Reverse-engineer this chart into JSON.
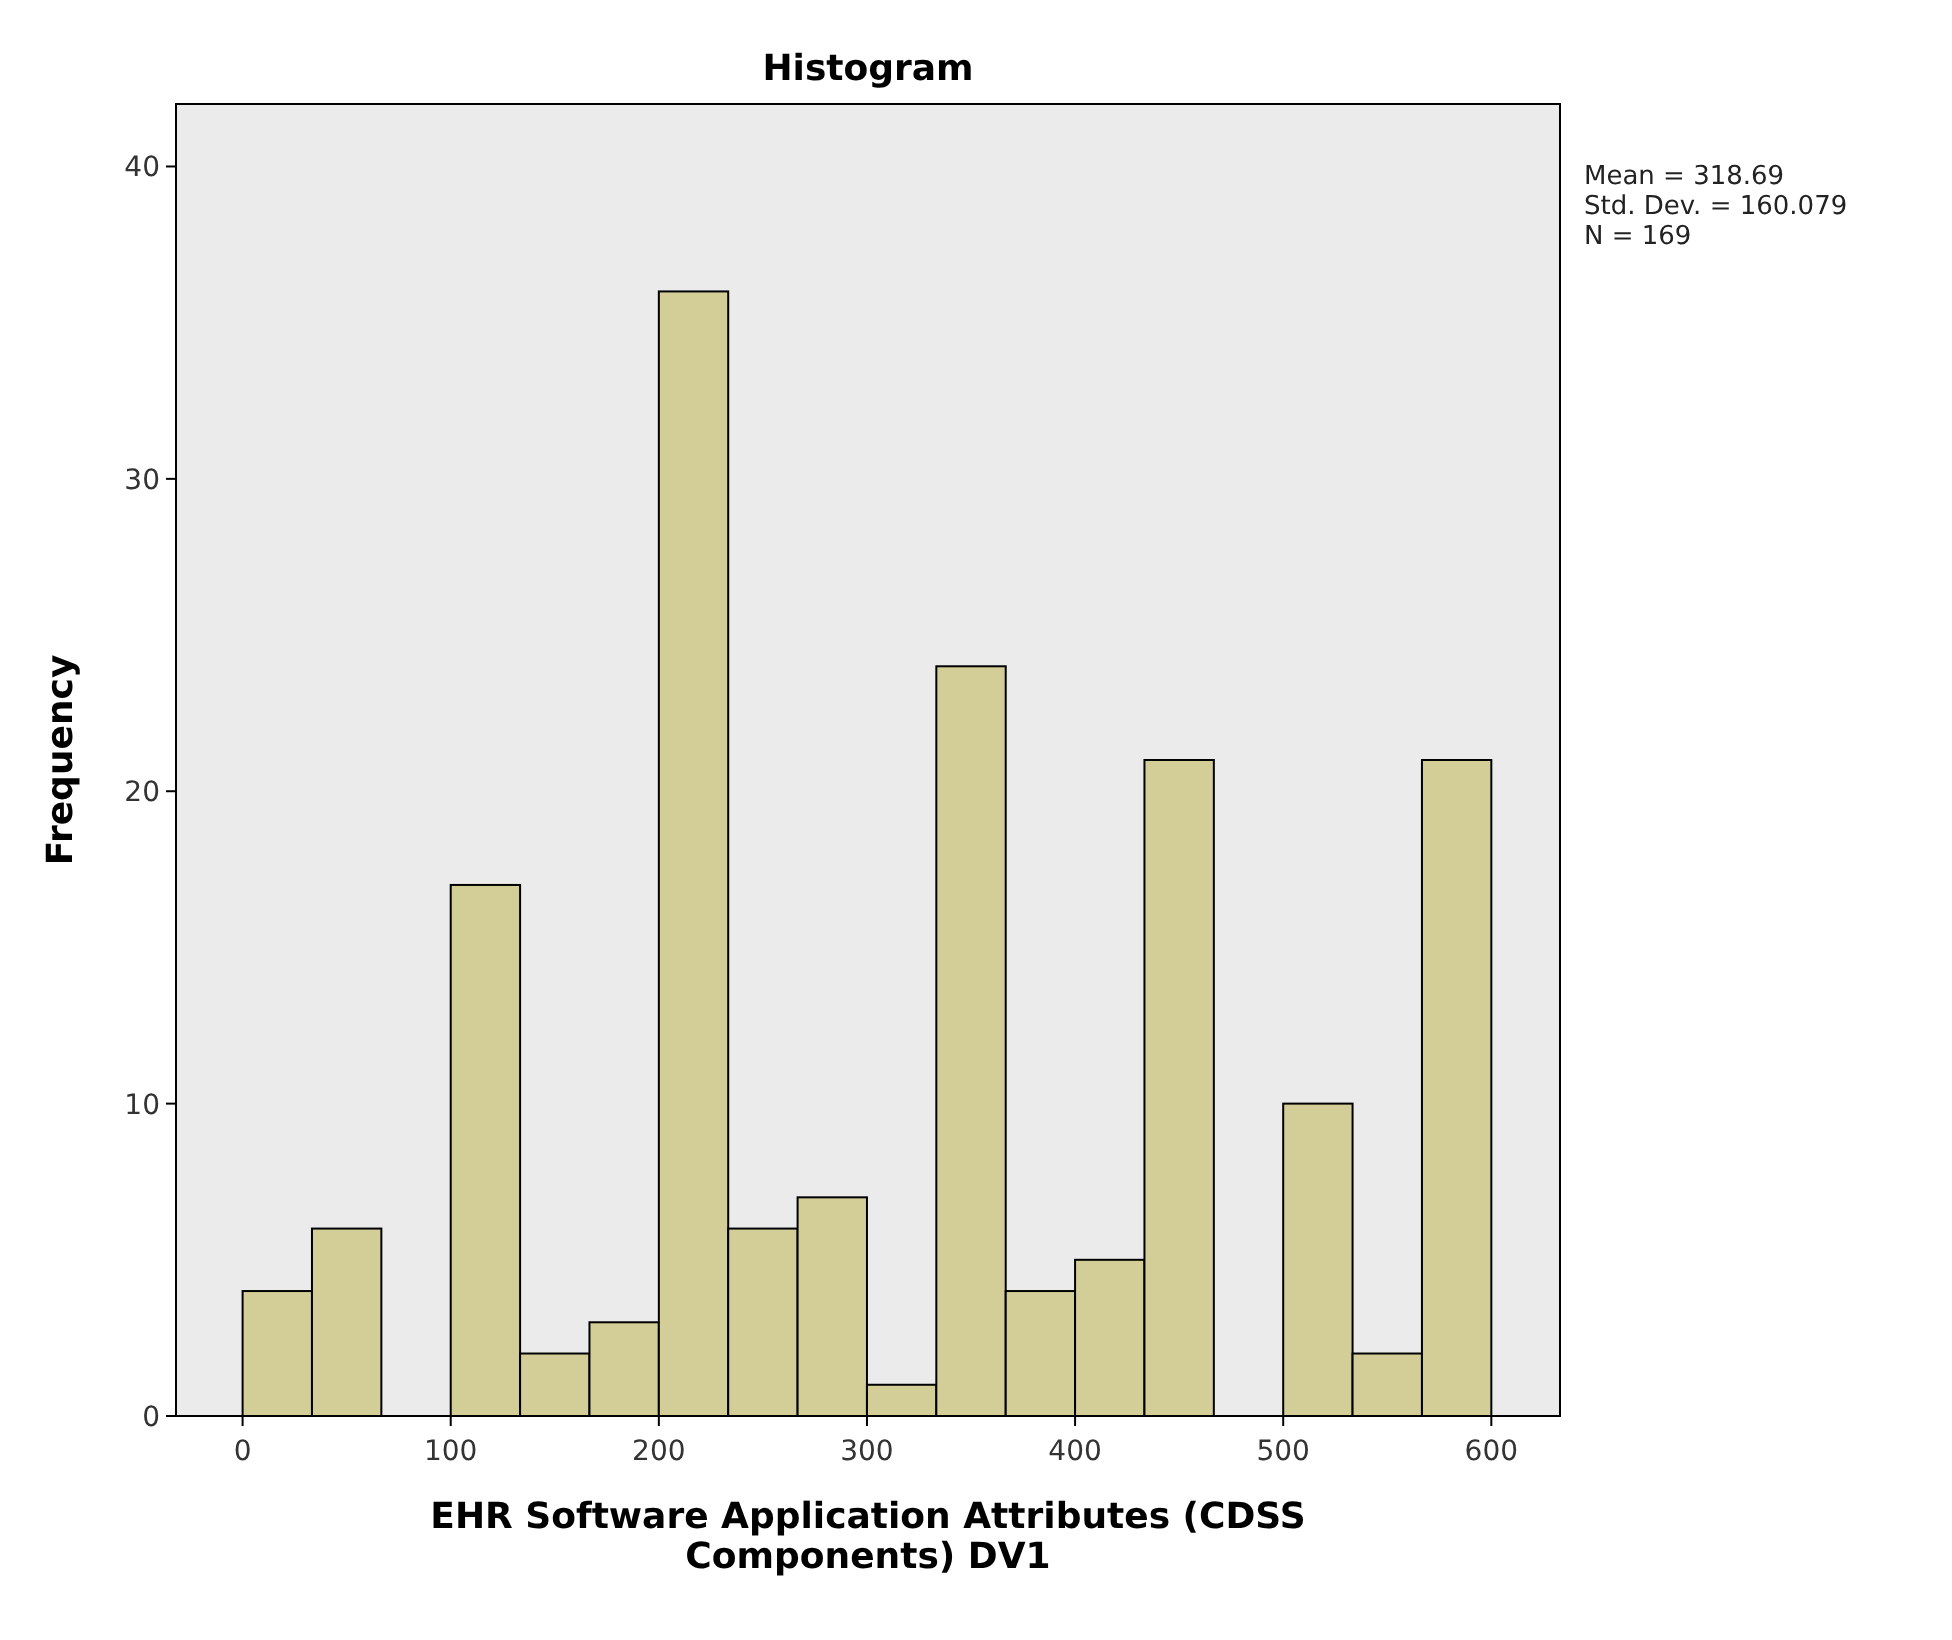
{
  "chart_data": {
    "type": "histogram",
    "title": "Histogram",
    "xlabel": "EHR Software Application Attributes (CDSS Components) DV1",
    "ylabel": "Frequency",
    "bins": [
      0,
      33.33,
      66.67,
      100,
      133.33,
      166.67,
      200,
      233.33,
      266.67,
      300,
      333.33,
      366.67,
      400,
      433.33,
      466.67,
      500,
      533.33,
      566.67,
      600
    ],
    "values": [
      4,
      6,
      0,
      17,
      2,
      3,
      36,
      6,
      7,
      1,
      24,
      4,
      5,
      21,
      0,
      10,
      2,
      21
    ],
    "color": "#d3ce97",
    "xlim": [
      -32,
      633
    ],
    "ylim": [
      0,
      42
    ],
    "xticks": [
      0,
      100,
      200,
      300,
      400,
      500,
      600
    ],
    "yticks": [
      0,
      10,
      20,
      30,
      40
    ],
    "grid": false,
    "annotations": [
      "Mean = 318.69",
      "Std. Dev. = 160.079",
      "N = 169"
    ]
  }
}
